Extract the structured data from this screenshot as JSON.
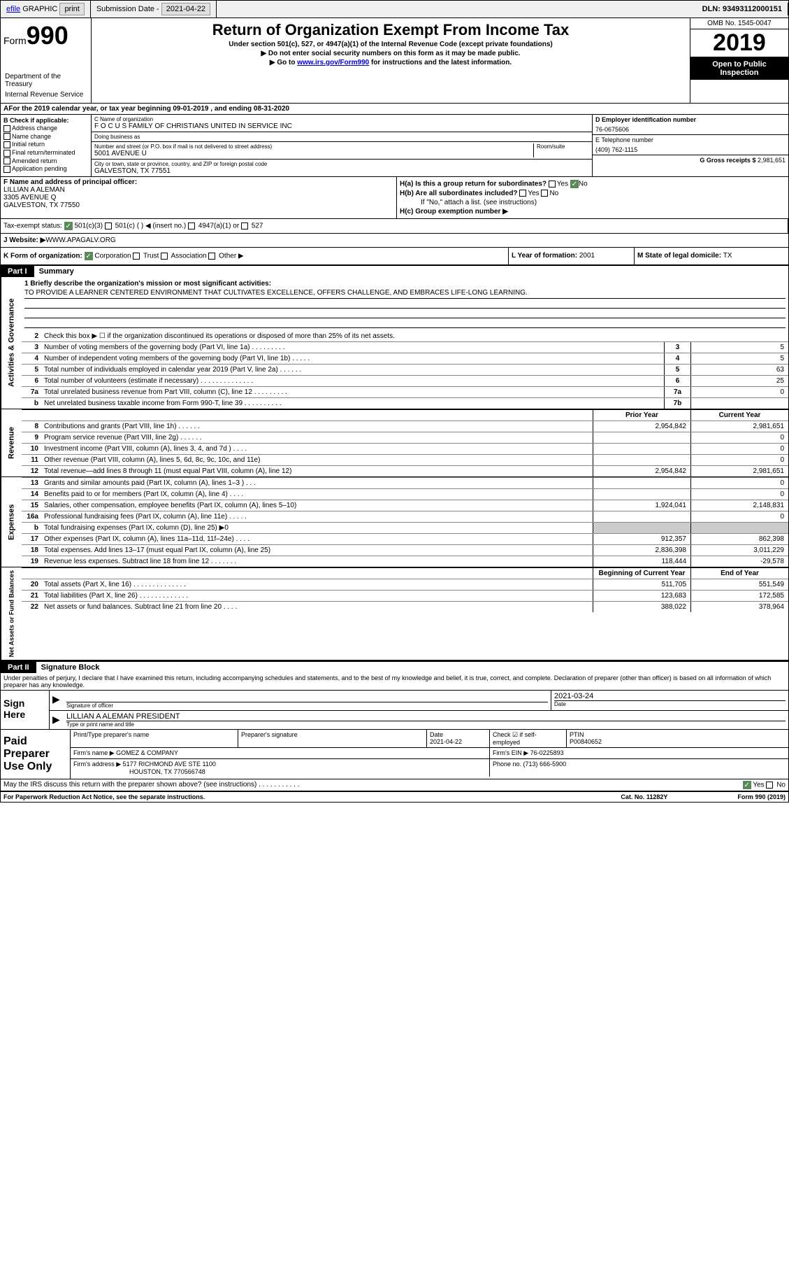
{
  "top_bar": {
    "efile": "efile",
    "graphic": "GRAPHIC",
    "print": "print",
    "submission_label": "Submission Date - ",
    "submission_date": "2021-04-22",
    "dln": "DLN: 93493112000151"
  },
  "header": {
    "form_label": "Form",
    "form_number": "990",
    "dept": "Department of the Treasury",
    "irs": "Internal Revenue Service",
    "title": "Return of Organization Exempt From Income Tax",
    "subtitle": "Under section 501(c), 527, or 4947(a)(1) of the Internal Revenue Code (except private foundations)",
    "note1": "▶ Do not enter social security numbers on this form as it may be made public.",
    "note2_pre": "▶ Go to ",
    "note2_link": "www.irs.gov/Form990",
    "note2_post": " for instructions and the latest information.",
    "omb": "OMB No. 1545-0047",
    "year": "2019",
    "open_public": "Open to Public Inspection"
  },
  "tax_year": "For the 2019 calendar year, or tax year beginning 09-01-2019   , and ending 08-31-2020",
  "section_b": {
    "label": "B Check if applicable:",
    "items": [
      "Address change",
      "Name change",
      "Initial return",
      "Final return/terminated",
      "Amended return",
      "Application pending"
    ]
  },
  "section_c": {
    "name_label": "C Name of organization",
    "name": "F O C U S FAMILY OF CHRISTIANS UNITED IN SERVICE INC",
    "dba_label": "Doing business as",
    "dba": "",
    "addr_label": "Number and street (or P.O. box if mail is not delivered to street address)",
    "addr": "5001 AVENUE U",
    "room_label": "Room/suite",
    "city_label": "City or town, state or province, country, and ZIP or foreign postal code",
    "city": "GALVESTON, TX  77551"
  },
  "section_d": {
    "ein_label": "D Employer identification number",
    "ein": "76-0675606",
    "phone_label": "E Telephone number",
    "phone": "(409) 762-1115",
    "gross_label": "G Gross receipts $ ",
    "gross": "2,981,651"
  },
  "officer": {
    "label": "F  Name and address of principal officer:",
    "name": "LILLIAN A ALEMAN",
    "addr1": "3305 AVENUE Q",
    "addr2": "GALVESTON, TX  77550"
  },
  "section_h": {
    "ha_label": "H(a)  Is this a group return for subordinates?",
    "ha_yes": "Yes",
    "ha_no": "No",
    "hb_label": "H(b)  Are all subordinates included?",
    "hb_note": "If \"No,\" attach a list. (see instructions)",
    "hc_label": "H(c)  Group exemption number ▶"
  },
  "status": {
    "label": "Tax-exempt status:",
    "opt1": "501(c)(3)",
    "opt2": "501(c) (  ) ◀ (insert no.)",
    "opt3": "4947(a)(1) or",
    "opt4": "527"
  },
  "website": {
    "label": "J   Website: ▶ ",
    "value": "WWW.APAGALV.ORG"
  },
  "k_row": {
    "k_label": "K Form of organization:",
    "k_opts": [
      "Corporation",
      "Trust",
      "Association",
      "Other ▶"
    ],
    "l_label": "L Year of formation: ",
    "l_val": "2001",
    "m_label": "M State of legal domicile: ",
    "m_val": "TX"
  },
  "part1": {
    "header": "Part I",
    "title": "Summary",
    "sidebar1": "Activities & Governance",
    "sidebar2": "Revenue",
    "sidebar3": "Expenses",
    "sidebar4": "Net Assets or Fund Balances",
    "line1_label": "1   Briefly describe the organization's mission or most significant activities:",
    "line1_text": "TO PROVIDE A LEARNER CENTERED ENVIRONMENT THAT CULTIVATES EXCELLENCE, OFFERS CHALLENGE, AND EMBRACES LIFE-LONG LEARNING.",
    "line2_label": "Check this box ▶ ☐  if the organization discontinued its operations or disposed of more than 25% of its net assets.",
    "lines_ag": [
      {
        "n": "3",
        "desc": "Number of voting members of the governing body (Part VI, line 1a)   .   .   .   .   .   .   .   .   .",
        "box": "3",
        "val": "5"
      },
      {
        "n": "4",
        "desc": "Number of independent voting members of the governing body (Part VI, line 1b)   .   .   .   .   .",
        "box": "4",
        "val": "5"
      },
      {
        "n": "5",
        "desc": "Total number of individuals employed in calendar year 2019 (Part V, line 2a)   .   .   .   .   .   .",
        "box": "5",
        "val": "63"
      },
      {
        "n": "6",
        "desc": "Total number of volunteers (estimate if necessary)   .   .   .   .   .   .   .   .   .   .   .   .   .   .",
        "box": "6",
        "val": "25"
      },
      {
        "n": "7a",
        "desc": "Total unrelated business revenue from Part VIII, column (C), line 12   .   .   .   .   .   .   .   .   .",
        "box": "7a",
        "val": "0"
      },
      {
        "n": "b",
        "desc": "Net unrelated business taxable income from Form 990-T, line 39   .   .   .   .   .   .   .   .   .   .",
        "box": "7b",
        "val": ""
      }
    ],
    "py_header": "Prior Year",
    "cy_header": "Current Year",
    "lines_rev": [
      {
        "n": "8",
        "desc": "Contributions and grants (Part VIII, line 1h)   .   .   .   .   .   .",
        "py": "2,954,842",
        "cy": "2,981,651"
      },
      {
        "n": "9",
        "desc": "Program service revenue (Part VIII, line 2g)   .   .   .   .   .   .",
        "py": "",
        "cy": "0"
      },
      {
        "n": "10",
        "desc": "Investment income (Part VIII, column (A), lines 3, 4, and 7d )   .   .   .   .",
        "py": "",
        "cy": "0"
      },
      {
        "n": "11",
        "desc": "Other revenue (Part VIII, column (A), lines 5, 6d, 8c, 9c, 10c, and 11e)",
        "py": "",
        "cy": "0"
      },
      {
        "n": "12",
        "desc": "Total revenue—add lines 8 through 11 (must equal Part VIII, column (A), line 12)",
        "py": "2,954,842",
        "cy": "2,981,651"
      }
    ],
    "lines_exp": [
      {
        "n": "13",
        "desc": "Grants and similar amounts paid (Part IX, column (A), lines 1–3 )   .   .   .",
        "py": "",
        "cy": "0"
      },
      {
        "n": "14",
        "desc": "Benefits paid to or for members (Part IX, column (A), line 4)   .   .   .   .",
        "py": "",
        "cy": "0"
      },
      {
        "n": "15",
        "desc": "Salaries, other compensation, employee benefits (Part IX, column (A), lines 5–10)",
        "py": "1,924,041",
        "cy": "2,148,831"
      },
      {
        "n": "16a",
        "desc": "Professional fundraising fees (Part IX, column (A), line 11e)   .   .   .   .   .",
        "py": "",
        "cy": "0"
      },
      {
        "n": "b",
        "desc": "Total fundraising expenses (Part IX, column (D), line 25) ▶0",
        "py": "shaded",
        "cy": "shaded"
      },
      {
        "n": "17",
        "desc": "Other expenses (Part IX, column (A), lines 11a–11d, 11f–24e)   .   .   .   .",
        "py": "912,357",
        "cy": "862,398"
      },
      {
        "n": "18",
        "desc": "Total expenses. Add lines 13–17 (must equal Part IX, column (A), line 25)",
        "py": "2,836,398",
        "cy": "3,011,229"
      },
      {
        "n": "19",
        "desc": "Revenue less expenses. Subtract line 18 from line 12   .   .   .   .   .   .   .",
        "py": "118,444",
        "cy": "-29,578"
      }
    ],
    "boy_header": "Beginning of Current Year",
    "eoy_header": "End of Year",
    "lines_na": [
      {
        "n": "20",
        "desc": "Total assets (Part X, line 16)   .   .   .   .   .   .   .   .   .   .   .   .   .   .",
        "py": "511,705",
        "cy": "551,549"
      },
      {
        "n": "21",
        "desc": "Total liabilities (Part X, line 26)   .   .   .   .   .   .   .   .   .   .   .   .   .",
        "py": "123,683",
        "cy": "172,585"
      },
      {
        "n": "22",
        "desc": "Net assets or fund balances. Subtract line 21 from line 20   .   .   .   .",
        "py": "388,022",
        "cy": "378,964"
      }
    ]
  },
  "part2": {
    "header": "Part II",
    "title": "Signature Block",
    "penalties": "Under penalties of perjury, I declare that I have examined this return, including accompanying schedules and statements, and to the best of my knowledge and belief, it is true, correct, and complete. Declaration of preparer (other than officer) is based on all information of which preparer has any knowledge.",
    "sign_here": "Sign Here",
    "sig_officer_label": "Signature of officer",
    "sig_date_label": "Date",
    "sig_date": "2021-03-24",
    "sig_name": "LILLIAN A ALEMAN  PRESIDENT",
    "sig_name_label": "Type or print name and title",
    "paid_label": "Paid Preparer Use Only",
    "prep_name_label": "Print/Type preparer's name",
    "prep_sig_label": "Preparer's signature",
    "prep_date_label": "Date",
    "prep_date": "2021-04-22",
    "prep_check_label": "Check ☑ if self-employed",
    "ptin_label": "PTIN",
    "ptin": "P00840652",
    "firm_name_label": "Firm's name    ▶ ",
    "firm_name": "GOMEZ & COMPANY",
    "firm_ein_label": "Firm's EIN ▶ ",
    "firm_ein": "76-0225893",
    "firm_addr_label": "Firm's address ▶ ",
    "firm_addr1": "5177 RICHMOND AVE STE 1100",
    "firm_addr2": "HOUSTON, TX  770566748",
    "firm_phone_label": "Phone no. ",
    "firm_phone": "(713) 666-5900",
    "discuss": "May the IRS discuss this return with the preparer shown above? (see instructions)   .   .   .   .   .   .   .   .   .   .   .",
    "discuss_yes": "Yes",
    "discuss_no": "No"
  },
  "footer": {
    "paperwork": "For Paperwork Reduction Act Notice, see the separate instructions.",
    "cat": "Cat. No. 11282Y",
    "form": "Form 990 (2019)"
  }
}
